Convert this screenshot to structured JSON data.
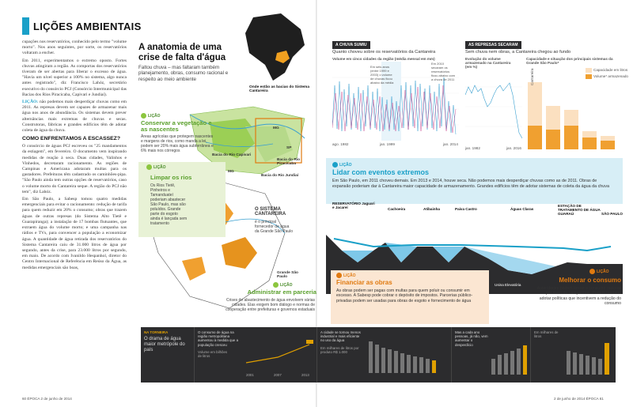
{
  "section": {
    "title": "LIÇÕES AMBIENTAIS"
  },
  "article": {
    "p1": "cupações nos reservatórios, conhecido pelo termo \"volume morto\". Nos anos seguintes, por sorte, os reservatórios voltaram a encher.",
    "p2": "Em 2011, experimentamos o extremo oposto. Fortes chuvas atingiram a região. As comportas dos reservatórios tiveram de ser abertas para liberar o excesso de água. \"Havia um nível superior a 100% no sistema, algo nunca antes registrado\", diz Francisco Lahóz, secretário executivo do consórcio PCJ (Consórcio Intermunicipal das Bacias dos Rios Piracicaba, Capivari e Jundiaí).",
    "lead": "LIÇÃO:",
    "p3": "não podemos mais desperdiçar chuvas como em 2011. As represas devem ser capazes de armazenar mais água nos anos de abundância. Os sistemas devem prever alternâncias mais extremas de chuvas e secas. Construtoras, fábricas e grandes edifícios têm de adotar coleta de água da chuva.",
    "h1": "COMO ENFRENTAMOS A ESCASSEZ?",
    "p4": "O consórcio de águas PCJ escreveu os \"25 mandamentos da estiagem\", em fevereiro. O documento vem inspirando medidas de reação à seca. Duas cidades, Valinhos e Vinhedos, decretaram racionamento. As regiões de Campinas e Americana adotaram multas para os gastadores. Prefeituras têm cadastrado os caminhões-pipa. \"São Paulo ainda tem outras opções de reservatórios, caso o volume morto do Cantareira seque. A região do PCJ não tem\", diz Lahóz.",
    "p5": "Em São Paulo, a Sabesp tomou quatro medidas emergenciais para evitar o racionamento: redução de tarifa para quem reduzir em 20% o consumo; obras que trazem águas de outras represas (do Sistema Alto Tietê e Guarapiranga); a instalação de 17 bombas flutuantes, que extraem água do volume morto; e uma campanha nas rádios e TVs, para convencer a população a economizar água. A quantidade de água retirada dos reservatórios do Sistema Cantareira caiu de 31.000 litros de água por segundo, antes da crise, para 23.000 litros por segundo, em maio. De acordo com Ivanildo Hespanhol, diretor do Centro Internacional de Referência em Reúso da Água, as medidas emergenciais são boas,"
  },
  "infographic": {
    "headline": "A anatomia de uma crise de falta d'água",
    "deck": "Faltou chuva – mas faltaram também planejamento, obras, consumo racional e respeito ao meio ambiente",
    "brazil_label": "Onde estão as bacias do Sistema Cantareira",
    "licao": "LIÇÃO",
    "veg_h": "Conservar a vegetação e as nascentes",
    "veg_t": "Áreas agrícolas que protegem nascentes e margens de rios, como manda a lei, podem ser 20% mais água subterrânea e 6% mais nos córregos",
    "rios_h": "Limpar os rios",
    "rios_t": "Os Rios Tietê, Pinheiros e Tamanduateí poderiam abastecer São Paulo, mas são poluídos. Grande parte do esgoto ainda é lançada sem tratamento",
    "cant_h": "O SISTEMA CANTAREIRA",
    "cant_t": "é o principal fornecedor de água da Grande São Paulo",
    "parc_h": "Administrar em parceria",
    "parc_t": "Crises de abastecimento de água envolvem várias cidades. Elas exigem bom diálogo e normas de cooperação entre prefeituras e governos estaduais",
    "labels": {
      "mg": "MG",
      "sp": "SP",
      "bacia_cap": "Bacia do Rio Capivari",
      "bacia_pir": "Bacia do Rio Piracicaba",
      "bacia_jun": "Bacia do Rio Jundiaí",
      "grande_sp": "Grande São Paulo"
    }
  },
  "chuva": {
    "tag": "A CHUVA SUMIU",
    "sub": "Quanto choveu sobre os reservatórios da Cantareira",
    "small": "Volume em cinco cidades da região (média mensal em mm)",
    "note1": "Em seis anos (entre 1999 e 2003) o volume de chuvas ficou abaixo da média",
    "note2": "Em 2010 secaram os reservatórios ficou abaixo com a chuva de 2011",
    "x_labels": [
      "ago. 1982",
      "jan. 1999",
      "jan. 2014"
    ]
  },
  "represas": {
    "tag": "AS REPRESAS SECARAM",
    "sub": "Sem chuva nem obras, a Cantareira chegou ao fundo",
    "small1": "Evolução do volume armazenado na Cantareira (em %)",
    "small2": "Capacidade e situação dos principais sistemas da Grande São Paulo*",
    "legend1": "Capacidade em litros",
    "legend2": "Volume* armazenado",
    "bars": [
      "Cantareira",
      "Alto Tietê",
      "Guarapiranga",
      "Alto Cotia",
      "Rio Claro"
    ],
    "x_labels": [
      "jan. 1982",
      "jan. 2016"
    ]
  },
  "extremos": {
    "h": "Lidar com eventos extremos",
    "t": "Em São Paulo, em 2011 choveu demais. Em 2013 e 2014, houve seca. Não podemos mais desperdiçar chuvas como as de 2011. Obras de expansão poderiam dar à Cantareira maior capacidade de armazenamento. Grandes edifícios têm de adotar sistemas de coleta da água da chuva"
  },
  "profile": {
    "labels": [
      "RESERVATÓRIO Jaguari e Jacareí",
      "Cachoeira",
      "Atibainha",
      "Paiva Castro",
      "Águas Claras",
      "ESTAÇÃO DE TRATAMENTO DE ÁGUA GUARAÚ",
      "SÃO PAULO",
      "Usina Elevatória"
    ]
  },
  "obras": {
    "h": "Financiar as obras",
    "t": "As obras podem ser pagas com multas para quem poluir ou consumir em excesso. A Sabesp pode cobrar o depósito de impostos. Parcerias público-privadas podem ser usadas para obras de esgoto e fornecimento de água"
  },
  "consumo": {
    "h": "Melhorar o consumo",
    "t": "Autoridades podem tornar o consumo racional por meio de campanhas. Podem também adotar políticas que incentivem a redução do consumo"
  },
  "strip": {
    "c1k": "NA TORNEIRA",
    "c1t": "O drama de água maior metrópole do país",
    "c2t": "O consumo de água na região metropolitana aumentou à medida que a população cresceu",
    "c2v": "Volume em bilhões de litros",
    "c2x": [
      "2001",
      "2007",
      "2013"
    ],
    "c3t": "A cidade se tornou menos industrial e mais eficiente no uso da água",
    "c3v": "Em milhares de litros por produto R$ 1.000",
    "c4t": "Mas a cada ano pessoas, já não, vem aumentar o desperdício",
    "c5t": "Em milhares de litros"
  },
  "footer": {
    "left": "60 ÉPOCA 2 de junho de 2014",
    "right": "2 de junho de 2014 ÉPOCA 61"
  },
  "colors": {
    "accent": "#1aa0c8",
    "green": "#8cc63f",
    "orange": "#e07a10",
    "dark": "#2c2c2e"
  }
}
